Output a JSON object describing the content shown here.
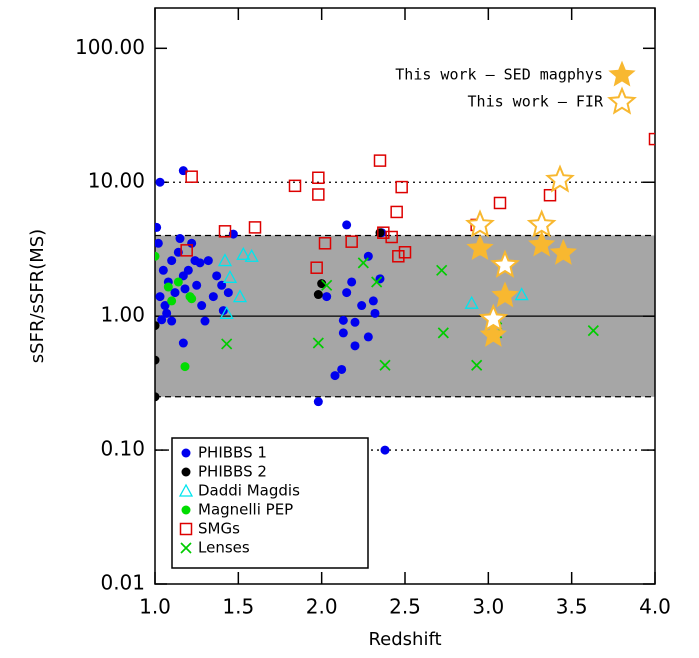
{
  "chart_data": {
    "type": "scatter",
    "xlabel": "Redshift",
    "ylabel": "sSFR/sSFR(MS)",
    "xlim": [
      1.0,
      4.0
    ],
    "xticks": [
      {
        "value": 1.0,
        "label": "1.0"
      },
      {
        "value": 1.5,
        "label": "1.5"
      },
      {
        "value": 2.0,
        "label": "2.0"
      },
      {
        "value": 2.5,
        "label": "2.5"
      },
      {
        "value": 3.0,
        "label": "3.0"
      },
      {
        "value": 3.5,
        "label": "3.5"
      },
      {
        "value": 4.0,
        "label": "4.0"
      }
    ],
    "ylim": [
      0.01,
      200
    ],
    "yscale": "log",
    "yticks": [
      {
        "value": 0.01,
        "label": "0.01"
      },
      {
        "value": 0.1,
        "label": "0.10"
      },
      {
        "value": 1,
        "label": "1.00"
      },
      {
        "value": 10,
        "label": "10.00"
      },
      {
        "value": 100,
        "label": "100.00"
      }
    ],
    "band": {
      "range": [
        0.25,
        4
      ],
      "color": "#a6a6a6"
    },
    "reference_lines": [
      {
        "value": 10,
        "style": "dotted"
      },
      {
        "value": 4,
        "style": "dashed"
      },
      {
        "value": 1,
        "style": "solid"
      },
      {
        "value": 0.25,
        "style": "dashed"
      },
      {
        "value": 0.1,
        "style": "dotted"
      }
    ],
    "legend": "lower left",
    "series": [
      {
        "name": "PHIBBS  1",
        "color": "#0000ee",
        "marker": "circle",
        "x": [
          1.03,
          1.17,
          1.01,
          1.02,
          1.05,
          1.08,
          1.03,
          1.06,
          1.1,
          1.12,
          1.14,
          1.15,
          1.17,
          1.18,
          1.2,
          1.22,
          1.24,
          1.25,
          1.27,
          1.28,
          1.3,
          1.32,
          1.35,
          1.37,
          1.4,
          1.41,
          1.44,
          1.47,
          1.17,
          1.1,
          1.04,
          1.07,
          1.98,
          2.03,
          2.08,
          2.12,
          2.13,
          2.13,
          2.15,
          2.15,
          2.18,
          2.2,
          2.2,
          2.24,
          2.28,
          2.28,
          2.31,
          2.32,
          2.35,
          2.38,
          2.36
        ],
        "values": [
          10.0,
          12.2,
          4.6,
          3.5,
          2.2,
          1.8,
          1.4,
          1.2,
          2.6,
          1.5,
          3.0,
          3.8,
          2.0,
          1.6,
          2.2,
          3.5,
          2.6,
          1.7,
          2.5,
          1.2,
          0.92,
          2.6,
          1.4,
          2.0,
          1.7,
          1.1,
          1.5,
          4.1,
          0.63,
          0.92,
          0.94,
          1.05,
          0.23,
          1.4,
          0.36,
          0.4,
          0.93,
          0.75,
          1.5,
          4.8,
          1.8,
          0.9,
          0.6,
          1.2,
          2.8,
          0.7,
          1.3,
          1.05,
          1.9,
          0.1,
          4.2
        ]
      },
      {
        "name": "PHIBBS  2",
        "color": "#000000",
        "marker": "circle",
        "x": [
          1.0,
          1.0,
          1.0,
          1.98,
          2.0,
          2.35
        ],
        "values": [
          0.85,
          0.47,
          0.25,
          1.45,
          1.75,
          4.2
        ]
      },
      {
        "name": "Daddi Magdis",
        "color": "#00e5ee",
        "marker": "triangle-open",
        "x": [
          1.42,
          1.43,
          1.45,
          1.51,
          1.53,
          1.58,
          2.9,
          3.2
        ],
        "values": [
          2.6,
          1.05,
          1.95,
          1.4,
          2.9,
          2.8,
          1.25,
          1.45
        ]
      },
      {
        "name": "Magnelli PEP",
        "color": "#00dd00",
        "marker": "circle",
        "x": [
          1.0,
          1.08,
          1.1,
          1.14,
          1.18,
          1.22,
          1.21
        ],
        "values": [
          2.8,
          1.65,
          1.3,
          1.8,
          0.42,
          1.35,
          1.4
        ]
      },
      {
        "name": "SMGs",
        "color": "#dd0000",
        "marker": "square-open",
        "x": [
          1.22,
          1.19,
          1.42,
          1.6,
          1.84,
          1.98,
          1.98,
          1.97,
          2.02,
          2.18,
          2.35,
          2.37,
          2.42,
          2.45,
          2.46,
          2.48,
          2.5,
          2.93,
          3.07,
          3.37,
          4.0
        ],
        "values": [
          11.0,
          3.1,
          4.3,
          4.6,
          9.4,
          10.8,
          8.1,
          2.3,
          3.5,
          3.6,
          14.5,
          4.2,
          3.9,
          6.0,
          2.8,
          9.2,
          3.0,
          4.8,
          7.0,
          8.0,
          21
        ]
      },
      {
        "name": "Lenses",
        "color": "#00cc00",
        "marker": "x",
        "x": [
          1.43,
          1.98,
          2.03,
          2.25,
          2.33,
          2.38,
          2.72,
          2.73,
          2.93,
          3.05,
          3.05,
          3.63
        ],
        "values": [
          0.62,
          0.63,
          1.7,
          2.5,
          1.8,
          0.43,
          2.2,
          0.75,
          0.43,
          0.75,
          0.95,
          0.78
        ]
      },
      {
        "name": "This work – SED magphys",
        "color": "#f8b830",
        "marker": "star",
        "x": [
          2.95,
          3.03,
          3.1,
          3.32,
          3.45
        ],
        "values": [
          3.2,
          0.72,
          1.42,
          3.4,
          2.95
        ]
      },
      {
        "name": "This work – FIR",
        "color": "#f8b830",
        "marker": "star-open",
        "x": [
          2.95,
          3.03,
          3.1,
          3.32,
          3.43
        ],
        "values": [
          4.8,
          0.95,
          2.4,
          4.8,
          10.4
        ]
      }
    ]
  }
}
